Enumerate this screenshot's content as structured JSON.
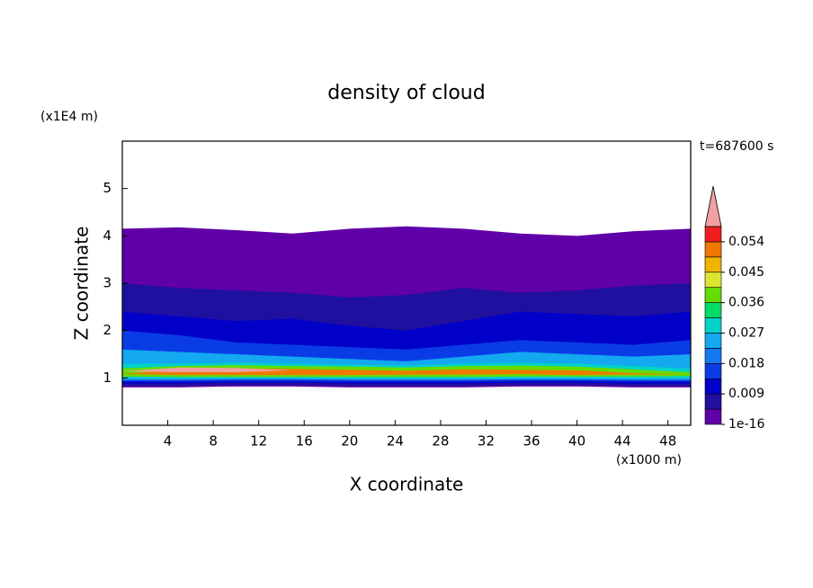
{
  "chart_data": {
    "type": "contour",
    "title": "density of cloud",
    "xlabel": "X coordinate",
    "ylabel": "Z coordinate",
    "xunit": "(x1000 m)",
    "yunit": "(x1E4 m)",
    "time_label": "t=687600 s",
    "xlim": [
      0,
      50
    ],
    "ylim": [
      0,
      6
    ],
    "xticks": [
      4,
      8,
      12,
      16,
      20,
      24,
      28,
      32,
      36,
      40,
      44,
      48
    ],
    "yticks": [
      1,
      2,
      3,
      4,
      5
    ],
    "x": [
      0,
      5,
      10,
      15,
      20,
      25,
      30,
      35,
      40,
      45,
      50
    ],
    "layers": [
      {
        "value": 0.002,
        "bottom": [
          0.8,
          0.8,
          0.82,
          0.82,
          0.8,
          0.8,
          0.8,
          0.82,
          0.82,
          0.8,
          0.8
        ],
        "top": [
          4.15,
          4.18,
          4.12,
          4.05,
          4.15,
          4.2,
          4.15,
          4.05,
          4.0,
          4.1,
          4.15
        ]
      },
      {
        "value": 0.006,
        "bottom": [
          0.83,
          0.83,
          0.85,
          0.85,
          0.83,
          0.83,
          0.83,
          0.85,
          0.85,
          0.83,
          0.83
        ],
        "top": [
          3.0,
          2.9,
          2.85,
          2.8,
          2.7,
          2.75,
          2.9,
          2.8,
          2.85,
          2.95,
          3.0
        ]
      },
      {
        "value": 0.011,
        "bottom": [
          0.88,
          0.88,
          0.9,
          0.9,
          0.88,
          0.88,
          0.88,
          0.9,
          0.9,
          0.88,
          0.88
        ],
        "top": [
          2.4,
          2.3,
          2.2,
          2.25,
          2.1,
          2.0,
          2.2,
          2.4,
          2.35,
          2.3,
          2.4
        ]
      },
      {
        "value": 0.016,
        "bottom": [
          0.92,
          0.92,
          0.93,
          0.93,
          0.92,
          0.92,
          0.92,
          0.93,
          0.93,
          0.92,
          0.92
        ],
        "top": [
          2.0,
          1.9,
          1.75,
          1.7,
          1.65,
          1.6,
          1.7,
          1.8,
          1.75,
          1.7,
          1.8
        ]
      },
      {
        "value": 0.024,
        "bottom": [
          0.96,
          0.96,
          0.97,
          0.97,
          0.96,
          0.96,
          0.96,
          0.97,
          0.97,
          0.96,
          0.96
        ],
        "top": [
          1.6,
          1.55,
          1.5,
          1.45,
          1.4,
          1.35,
          1.45,
          1.55,
          1.5,
          1.45,
          1.5
        ]
      },
      {
        "value": 0.031,
        "bottom": [
          1.0,
          0.99,
          1.0,
          1.0,
          0.99,
          0.99,
          0.99,
          1.0,
          1.0,
          0.99,
          1.0
        ],
        "top": [
          1.3,
          1.3,
          1.32,
          1.3,
          1.28,
          1.26,
          1.3,
          1.32,
          1.3,
          1.25,
          1.2
        ]
      },
      {
        "value": 0.04,
        "bottom": [
          1.03,
          1.02,
          1.02,
          1.02,
          1.02,
          1.02,
          1.02,
          1.03,
          1.03,
          1.03,
          1.04
        ],
        "top": [
          1.2,
          1.25,
          1.27,
          1.25,
          1.24,
          1.22,
          1.25,
          1.26,
          1.24,
          1.18,
          1.12
        ]
      },
      {
        "value": 0.052,
        "bottom": [
          1.08,
          1.06,
          1.06,
          1.06,
          1.06,
          1.07,
          1.07,
          1.08,
          1.06,
          1.07,
          1.08
        ],
        "top": [
          1.08,
          1.18,
          1.2,
          1.19,
          1.17,
          1.15,
          1.18,
          1.17,
          1.16,
          1.1,
          1.08
        ]
      },
      {
        "value": 0.06,
        "bottom": [
          1.14,
          1.12,
          1.12,
          1.16,
          1.16,
          1.16,
          1.16,
          1.16,
          1.16,
          1.16,
          1.16
        ],
        "top": [
          1.14,
          1.22,
          1.21,
          1.16,
          1.16,
          1.16,
          1.16,
          1.16,
          1.16,
          1.16,
          1.16
        ]
      }
    ],
    "colorbar": {
      "levels": [
        1e-16,
        0.0045,
        0.009,
        0.0135,
        0.018,
        0.0225,
        0.027,
        0.0315,
        0.036,
        0.0405,
        0.045,
        0.0495,
        0.054,
        0.0585
      ],
      "ticks": [
        1e-16,
        0.009,
        0.018,
        0.027,
        0.036,
        0.045,
        0.054
      ],
      "colors": [
        "#6000a8",
        "#2010a0",
        "#0000c8",
        "#0a3ce6",
        "#1478f0",
        "#14a8f0",
        "#00d2c8",
        "#00dc64",
        "#64dc00",
        "#dce632",
        "#f0b400",
        "#f07800",
        "#f01e1e"
      ],
      "extend_color": "#f0a0a0"
    }
  }
}
